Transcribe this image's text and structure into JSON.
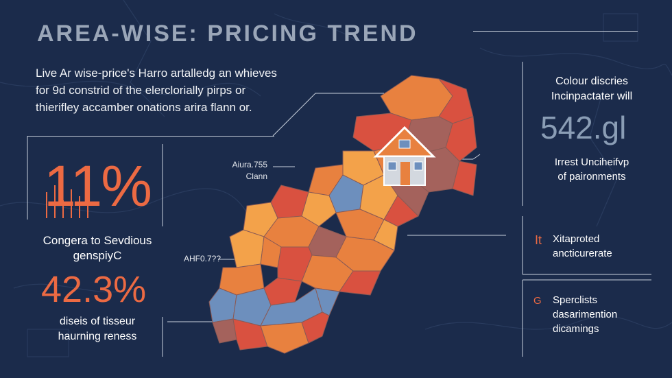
{
  "title": "AREA-WISE: PRICING TREND",
  "intro": {
    "line1": "Live Ar wise-price's Harro artalledg an whieves",
    "line2": "for 9d constrid of the elerclorially pirps or",
    "line3": "thierifley accamber onations arira flann or."
  },
  "stats": {
    "percent1": "11%",
    "caption1_line1": "Congera to Sevdious",
    "caption1_line2": "genspiyC",
    "percent2": "42.3%",
    "caption2_line1": "diseis of tisseur",
    "caption2_line2": "haurning reness"
  },
  "map_labels": {
    "label1_line1": "Aiura.755",
    "label1_line2": "Clann",
    "label2": "AHF0.7??"
  },
  "cards": {
    "card1": {
      "title_line1": "Colour discries",
      "title_line2": "Incinpactater will",
      "number": "542.gl",
      "sub_line1": "Irrest Unciheifvp",
      "sub_line2": "of paironments"
    },
    "card2": {
      "icon": "It",
      "line1": "Xitaproted",
      "line2": "ancticurerate"
    },
    "card3": {
      "icon": "G",
      "line1": "Sperclists",
      "line2": "dasarimention",
      "line3": "dicamings"
    }
  },
  "colors": {
    "background": "#1b2b4b",
    "accent_orange": "#ec6a43",
    "region_orange": "#e8813f",
    "region_red": "#d95140",
    "region_amber": "#f3a24a",
    "region_blue": "#6d8fbd",
    "region_brown": "#a4625c"
  },
  "icons": [
    "house-icon",
    "bar-graph-icon"
  ]
}
